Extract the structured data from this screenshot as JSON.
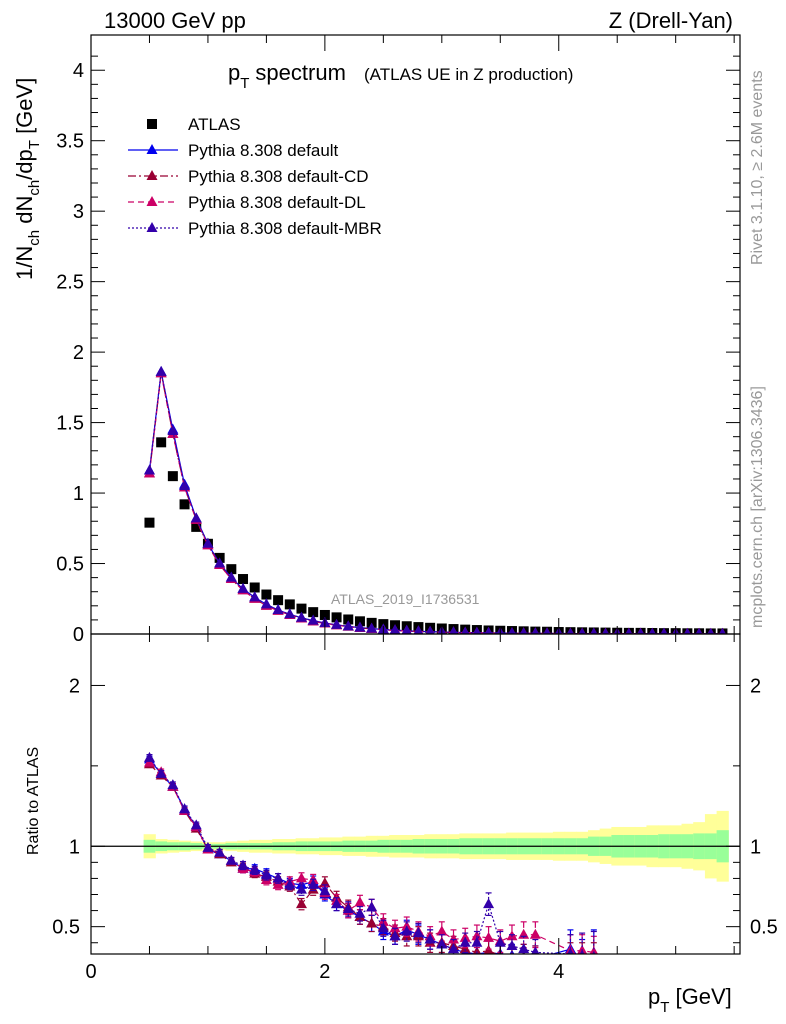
{
  "header": {
    "left": "13000 GeV pp",
    "right": "Z (Drell-Yan)"
  },
  "side_labels": {
    "rivet": "Rivet 3.1.10, ≥ 2.6M events",
    "mcplots": "mcplots.cern.ch [arXiv:1306.3436]"
  },
  "chart_data": [
    {
      "type": "scatter",
      "title": "p_T spectrum",
      "title_main": "p",
      "title_sub": "T",
      "title_word": "spectrum",
      "subtitle": "(ATLAS UE in Z production)",
      "ylabel": "1/N_ch dN_ch/dp_T [GeV]",
      "xlabel": "p_T [GeV]",
      "analysis_tag": "ATLAS_2019_I1736531",
      "xlim": [
        0,
        5.55
      ],
      "ylim": [
        0,
        4.25
      ],
      "x_ticks": [
        "0",
        "2",
        "4"
      ],
      "x_tick_values": [
        0,
        2,
        4
      ],
      "y_ticks": [
        "0",
        "0.5",
        "1",
        "1.5",
        "2",
        "2.5",
        "3",
        "3.5",
        "4"
      ],
      "y_tick_values": [
        0,
        0.5,
        1,
        1.5,
        2,
        2.5,
        3,
        3.5,
        4
      ],
      "legend_position": "top-left",
      "x": [
        0.5,
        0.6,
        0.7,
        0.8,
        0.9,
        1.0,
        1.1,
        1.2,
        1.3,
        1.4,
        1.5,
        1.6,
        1.7,
        1.8,
        1.9,
        2.0,
        2.1,
        2.2,
        2.3,
        2.4,
        2.5,
        2.6,
        2.7,
        2.8,
        2.9,
        3.0,
        3.1,
        3.2,
        3.3,
        3.4,
        3.5,
        3.6,
        3.7,
        3.8,
        3.9,
        4.0,
        4.1,
        4.2,
        4.3,
        4.4,
        4.5,
        4.6,
        4.7,
        4.8,
        4.9,
        5.0,
        5.1,
        5.2,
        5.3,
        5.4
      ],
      "series": [
        {
          "name": "ATLAS",
          "color": "#000000",
          "marker": "square",
          "values": [
            0.79,
            1.36,
            1.12,
            0.92,
            0.76,
            0.64,
            0.54,
            0.46,
            0.39,
            0.33,
            0.28,
            0.24,
            0.21,
            0.18,
            0.155,
            0.135,
            0.118,
            0.103,
            0.09,
            0.079,
            0.07,
            0.062,
            0.055,
            0.049,
            0.044,
            0.039,
            0.035,
            0.031,
            0.028,
            0.025,
            0.023,
            0.021,
            0.019,
            0.017,
            0.016,
            0.014,
            0.013,
            0.012,
            0.011,
            0.01,
            0.009,
            0.008,
            0.008,
            0.007,
            0.006,
            0.006,
            0.005,
            0.005,
            0.004,
            0.004
          ]
        },
        {
          "name": "Pythia 8.308 default",
          "color": "#0000ee",
          "marker": "triangle",
          "values": [
            1.16,
            1.86,
            1.45,
            1.06,
            0.82,
            0.64,
            0.5,
            0.4,
            0.32,
            0.26,
            0.21,
            0.17,
            0.14,
            0.115,
            0.095,
            0.078,
            0.065,
            0.054,
            0.045,
            0.038,
            0.032,
            0.027,
            0.023,
            0.019,
            0.016,
            0.014,
            0.012,
            0.01,
            0.009,
            0.008,
            0.007,
            0.006,
            0.005,
            0.005,
            0.004,
            0.004,
            0.003,
            0.003,
            0.003,
            0.002,
            0.002,
            0.002,
            0.002,
            0.002,
            0.002,
            0.001,
            0.001,
            0.001,
            0.001,
            0.001
          ]
        },
        {
          "name": "Pythia 8.308 default-CD",
          "color": "#990033",
          "marker": "triangle",
          "values": [
            1.14,
            1.85,
            1.42,
            1.04,
            0.81,
            0.63,
            0.49,
            0.39,
            0.31,
            0.25,
            0.2,
            0.165,
            0.135,
            0.11,
            0.09,
            0.075,
            0.062,
            0.052,
            0.043,
            0.036,
            0.03,
            0.025,
            0.021,
            0.018,
            0.015,
            0.013,
            0.011,
            0.009,
            0.008,
            0.007,
            0.006,
            0.005,
            0.005,
            0.004,
            0.004,
            0.003,
            0.003,
            0.003,
            0.002,
            0.002,
            0.002,
            0.002,
            0.002,
            0.001,
            0.001,
            0.001,
            0.001,
            0.001,
            0.001,
            0.001
          ]
        },
        {
          "name": "Pythia 8.308 default-DL",
          "color": "#cc0066",
          "marker": "triangle",
          "values": [
            1.14,
            1.85,
            1.42,
            1.04,
            0.81,
            0.63,
            0.49,
            0.39,
            0.31,
            0.25,
            0.2,
            0.165,
            0.135,
            0.11,
            0.09,
            0.075,
            0.062,
            0.052,
            0.043,
            0.036,
            0.03,
            0.025,
            0.021,
            0.018,
            0.015,
            0.013,
            0.011,
            0.009,
            0.008,
            0.007,
            0.006,
            0.005,
            0.005,
            0.004,
            0.004,
            0.003,
            0.003,
            0.003,
            0.002,
            0.002,
            0.002,
            0.002,
            0.002,
            0.001,
            0.001,
            0.001,
            0.001,
            0.001,
            0.001,
            0.001
          ]
        },
        {
          "name": "Pythia 8.308 default-MBR",
          "color": "#3300aa",
          "marker": "triangle",
          "values": [
            1.16,
            1.86,
            1.44,
            1.05,
            0.82,
            0.64,
            0.5,
            0.4,
            0.32,
            0.26,
            0.21,
            0.17,
            0.14,
            0.115,
            0.095,
            0.078,
            0.065,
            0.054,
            0.045,
            0.038,
            0.032,
            0.027,
            0.023,
            0.019,
            0.016,
            0.014,
            0.012,
            0.01,
            0.009,
            0.008,
            0.007,
            0.006,
            0.005,
            0.005,
            0.004,
            0.004,
            0.003,
            0.003,
            0.003,
            0.002,
            0.002,
            0.002,
            0.002,
            0.002,
            0.002,
            0.001,
            0.001,
            0.001,
            0.001,
            0.001
          ]
        }
      ]
    },
    {
      "type": "scatter",
      "ylabel": "Ratio to ATLAS",
      "xlim": [
        0,
        5.55
      ],
      "ylim": [
        0.33,
        2.32
      ],
      "y_ticks": [
        "0.5",
        "1",
        "2"
      ],
      "y_tick_values": [
        0.5,
        1,
        2
      ],
      "reference_line": 1,
      "band_inner_color": "#99ff99",
      "band_outer_color": "#ffff99",
      "band_x": [
        0.5,
        0.6,
        0.7,
        0.8,
        0.9,
        1.0,
        1.1,
        1.2,
        1.3,
        1.4,
        1.5,
        1.6,
        1.7,
        1.8,
        1.9,
        2.0,
        2.1,
        2.2,
        2.3,
        2.4,
        2.5,
        2.6,
        2.7,
        2.8,
        2.9,
        3.0,
        3.1,
        3.2,
        3.3,
        3.4,
        3.5,
        3.6,
        3.7,
        3.8,
        3.9,
        4.0,
        4.1,
        4.2,
        4.3,
        4.4,
        4.5,
        4.6,
        4.7,
        4.8,
        4.9,
        5.0,
        5.1,
        5.2,
        5.3,
        5.4
      ],
      "band_inner": [
        0.04,
        0.03,
        0.025,
        0.025,
        0.02,
        0.015,
        0.015,
        0.02,
        0.02,
        0.02,
        0.02,
        0.025,
        0.025,
        0.03,
        0.03,
        0.03,
        0.03,
        0.035,
        0.035,
        0.035,
        0.04,
        0.04,
        0.04,
        0.045,
        0.045,
        0.045,
        0.045,
        0.05,
        0.05,
        0.05,
        0.05,
        0.05,
        0.05,
        0.05,
        0.05,
        0.05,
        0.05,
        0.05,
        0.06,
        0.06,
        0.07,
        0.07,
        0.07,
        0.07,
        0.075,
        0.075,
        0.075,
        0.08,
        0.08,
        0.1
      ],
      "band_outer": [
        0.075,
        0.045,
        0.04,
        0.035,
        0.03,
        0.025,
        0.025,
        0.03,
        0.035,
        0.04,
        0.04,
        0.045,
        0.045,
        0.05,
        0.05,
        0.055,
        0.055,
        0.06,
        0.06,
        0.065,
        0.065,
        0.07,
        0.07,
        0.07,
        0.075,
        0.075,
        0.075,
        0.08,
        0.08,
        0.08,
        0.08,
        0.085,
        0.085,
        0.085,
        0.085,
        0.09,
        0.09,
        0.09,
        0.1,
        0.11,
        0.12,
        0.12,
        0.12,
        0.13,
        0.13,
        0.13,
        0.14,
        0.15,
        0.2,
        0.22
      ],
      "x": [
        0.5,
        0.6,
        0.7,
        0.8,
        0.9,
        1.0,
        1.1,
        1.2,
        1.3,
        1.4,
        1.5,
        1.6,
        1.7,
        1.8,
        1.9,
        2.0,
        2.1,
        2.2,
        2.3,
        2.4,
        2.5,
        2.6,
        2.7,
        2.8,
        2.9,
        3.0,
        3.1,
        3.2,
        3.3,
        3.4,
        3.5,
        3.6,
        3.7,
        3.8,
        4.1,
        4.2,
        4.3
      ],
      "series": [
        {
          "name": "Pythia 8.308 default",
          "color": "#0000ee",
          "style": "solid",
          "values": [
            1.54,
            1.45,
            1.37,
            1.23,
            1.12,
            0.98,
            0.95,
            0.91,
            0.86,
            0.86,
            0.83,
            0.8,
            0.77,
            0.76,
            0.78,
            0.7,
            0.64,
            0.6,
            0.56,
            0.52,
            0.47,
            0.44,
            0.48,
            0.45,
            0.42,
            0.39,
            0.36,
            0.34,
            0.33,
            0.34,
            0.33,
            0.32,
            0.31,
            0.3,
            0.36,
            0.3,
            0.33
          ],
          "errors": [
            0.02,
            0.02,
            0.02,
            0.02,
            0.02,
            0.02,
            0.02,
            0.02,
            0.025,
            0.025,
            0.03,
            0.03,
            0.03,
            0.035,
            0.035,
            0.04,
            0.04,
            0.045,
            0.045,
            0.05,
            0.05,
            0.05,
            0.06,
            0.06,
            0.06,
            0.06,
            0.06,
            0.06,
            0.07,
            0.07,
            0.07,
            0.07,
            0.08,
            0.08,
            0.12,
            0.12,
            0.15
          ]
        },
        {
          "name": "Pythia 8.308 default-CD",
          "color": "#990033",
          "style": "dashdot",
          "values": [
            1.51,
            1.44,
            1.37,
            1.22,
            1.11,
            0.98,
            0.95,
            0.9,
            0.87,
            0.83,
            0.81,
            0.78,
            0.75,
            0.64,
            0.73,
            0.77,
            0.68,
            0.62,
            0.56,
            0.52,
            0.5,
            0.46,
            0.44,
            0.44,
            0.4,
            0.4,
            0.38,
            0.36,
            0.34,
            0.35,
            0.32,
            0.3,
            0.31,
            0.3,
            0.3,
            0.3,
            0.3
          ],
          "errors": [
            0.02,
            0.02,
            0.02,
            0.02,
            0.02,
            0.02,
            0.02,
            0.02,
            0.025,
            0.025,
            0.03,
            0.03,
            0.03,
            0.035,
            0.035,
            0.04,
            0.04,
            0.045,
            0.045,
            0.05,
            0.05,
            0.05,
            0.06,
            0.06,
            0.06,
            0.06,
            0.06,
            0.06,
            0.07,
            0.07,
            0.07,
            0.07,
            0.08,
            0.08,
            0.1,
            0.1,
            0.1
          ]
        },
        {
          "name": "Pythia 8.308 default-DL",
          "color": "#cc0066",
          "style": "dashed",
          "values": [
            1.52,
            1.46,
            1.37,
            1.22,
            1.12,
            0.98,
            0.96,
            0.91,
            0.86,
            0.84,
            0.79,
            0.76,
            0.78,
            0.8,
            0.79,
            0.71,
            0.66,
            0.6,
            0.65,
            0.62,
            0.53,
            0.49,
            0.5,
            0.47,
            0.44,
            0.47,
            0.42,
            0.43,
            0.44,
            0.43,
            0.41,
            0.44,
            0.45,
            0.45,
            0.35,
            0.35,
            0.34
          ],
          "errors": [
            0.02,
            0.02,
            0.02,
            0.02,
            0.02,
            0.02,
            0.02,
            0.02,
            0.025,
            0.025,
            0.03,
            0.03,
            0.03,
            0.035,
            0.035,
            0.04,
            0.04,
            0.045,
            0.045,
            0.05,
            0.05,
            0.05,
            0.06,
            0.06,
            0.06,
            0.06,
            0.06,
            0.06,
            0.07,
            0.07,
            0.07,
            0.07,
            0.08,
            0.08,
            0.1,
            0.1,
            0.1
          ]
        },
        {
          "name": "Pythia 8.308 default-MBR",
          "color": "#3300aa",
          "style": "dotted",
          "values": [
            1.55,
            1.45,
            1.38,
            1.23,
            1.13,
            0.99,
            0.96,
            0.91,
            0.88,
            0.85,
            0.82,
            0.8,
            0.76,
            0.73,
            0.76,
            0.72,
            0.64,
            0.61,
            0.58,
            0.62,
            0.49,
            0.44,
            0.47,
            0.46,
            0.42,
            0.39,
            0.36,
            0.4,
            0.4,
            0.64,
            0.4,
            0.38,
            0.36,
            0.34,
            0.33,
            0.32,
            0.31
          ],
          "errors": [
            0.02,
            0.02,
            0.02,
            0.02,
            0.02,
            0.02,
            0.02,
            0.02,
            0.025,
            0.025,
            0.03,
            0.03,
            0.03,
            0.035,
            0.035,
            0.04,
            0.04,
            0.045,
            0.045,
            0.05,
            0.05,
            0.05,
            0.06,
            0.06,
            0.06,
            0.06,
            0.06,
            0.06,
            0.07,
            0.07,
            0.07,
            0.07,
            0.08,
            0.08,
            0.12,
            0.14,
            0.16
          ]
        }
      ]
    }
  ]
}
